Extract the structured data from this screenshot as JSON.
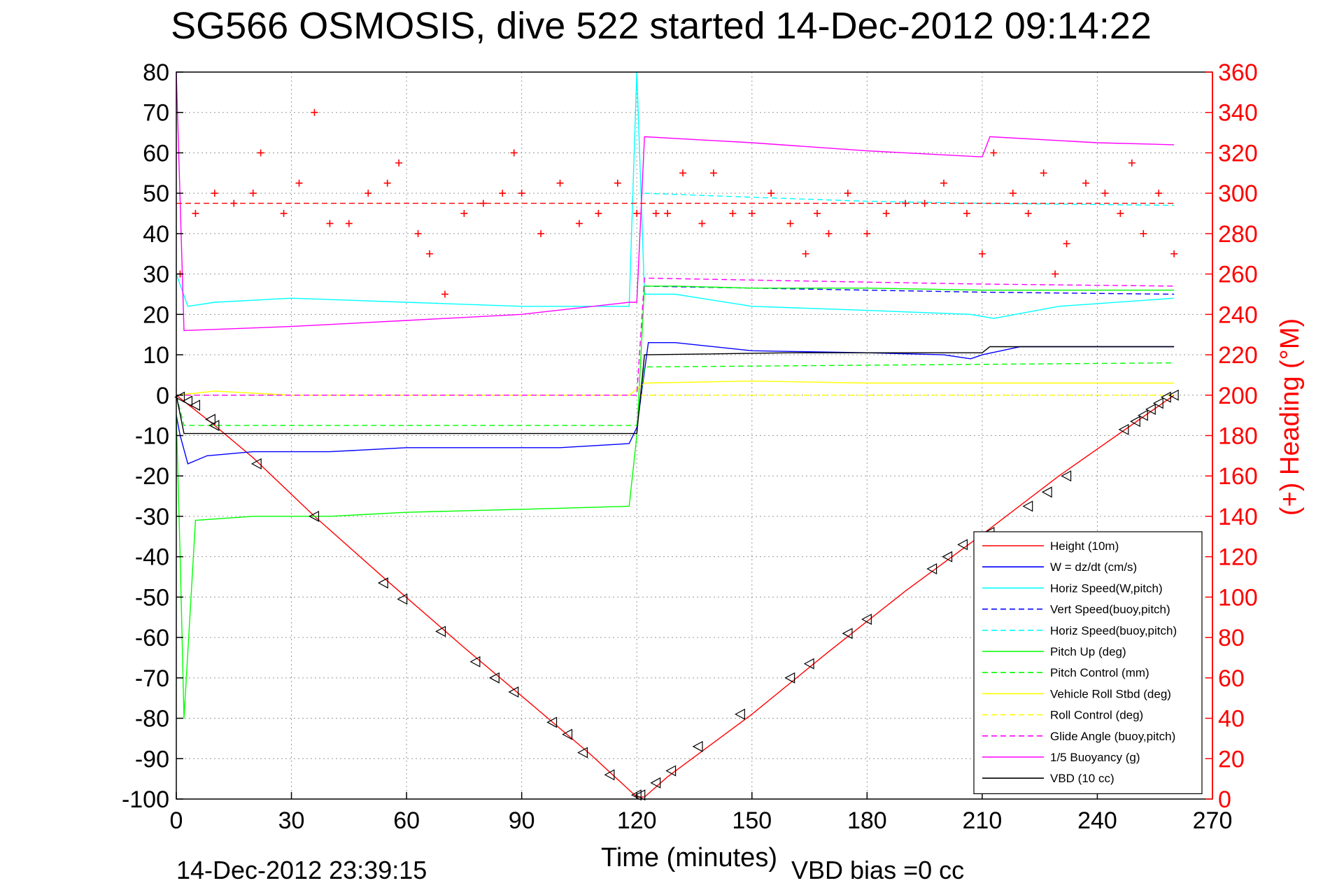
{
  "chart_data": {
    "type": "line",
    "title": "SG566 OSMOSIS, dive 522 started 14-Dec-2012 09:14:22",
    "xlabel": "Time (minutes)",
    "ylabel_right": "(+) Heading (°M)",
    "footer_left": "14-Dec-2012 23:39:15",
    "footer_right": "VBD bias =0 cc",
    "xlim": [
      0,
      270
    ],
    "ylim": [
      -100,
      80
    ],
    "ylim_right": [
      0,
      360
    ],
    "x_ticks": [
      "0",
      "30",
      "60",
      "90",
      "120",
      "150",
      "180",
      "210",
      "240",
      "270"
    ],
    "y_ticks": [
      "80",
      "70",
      "60",
      "50",
      "40",
      "30",
      "20",
      "10",
      "0",
      "-10",
      "-20",
      "-30",
      "-40",
      "-50",
      "-60",
      "-70",
      "-80",
      "-90",
      "-100"
    ],
    "y_ticks_right": [
      "360",
      "340",
      "320",
      "300",
      "280",
      "260",
      "240",
      "220",
      "200",
      "180",
      "160",
      "140",
      "120",
      "100",
      "80",
      "60",
      "40",
      "20",
      "0"
    ],
    "grid": true,
    "legend_position": "lower-right",
    "series": [
      {
        "name": "Height (10m)",
        "color": "#ff0000",
        "style": "solid",
        "x": [
          0,
          10,
          20,
          36,
          55,
          75,
          90,
          108,
          120,
          122,
          128,
          150,
          170,
          190,
          210,
          230,
          248,
          260
        ],
        "y": [
          0,
          -7.5,
          -15.5,
          -30,
          -46,
          -62.5,
          -74.5,
          -89,
          -99.5,
          -99.5,
          -94.5,
          -79,
          -63.5,
          -48.5,
          -34.5,
          -20,
          -8,
          0
        ]
      },
      {
        "name": "W = dz/dt (cm/s)",
        "color": "#0000ff",
        "style": "solid",
        "x": [
          0,
          1,
          3,
          8,
          20,
          40,
          60,
          80,
          100,
          118,
          120,
          123,
          130,
          150,
          180,
          200,
          207,
          210,
          220,
          240,
          260
        ],
        "y": [
          -5,
          -10,
          -17,
          -15,
          -14,
          -14,
          -13,
          -13,
          -13,
          -12,
          -8,
          13,
          13,
          11,
          10.5,
          10,
          9,
          10,
          12,
          12,
          12
        ]
      },
      {
        "name": "Horiz Speed(W,pitch)",
        "color": "#00ffff",
        "style": "solid",
        "x": [
          0,
          3,
          10,
          30,
          60,
          90,
          118,
          120,
          122,
          130,
          150,
          180,
          207,
          213,
          230,
          260
        ],
        "y": [
          30,
          22,
          23,
          24,
          23,
          22,
          22,
          80,
          25,
          25,
          22,
          21,
          20,
          19,
          22,
          24
        ]
      },
      {
        "name": "Vert Speed(buoy,pitch)",
        "color": "#0000ff",
        "style": "dashed",
        "x": [
          122,
          150,
          180,
          210,
          260
        ],
        "y": [
          27,
          26.5,
          26,
          25.5,
          25
        ]
      },
      {
        "name": "Horiz Speed(buoy,pitch)",
        "color": "#00ffff",
        "style": "dashed",
        "x": [
          122,
          150,
          180,
          210,
          260
        ],
        "y": [
          50,
          49,
          48,
          47.5,
          47
        ]
      },
      {
        "name": "Pitch Up (deg)",
        "color": "#00ff00",
        "style": "solid",
        "x": [
          0,
          1,
          2,
          5,
          20,
          40,
          60,
          80,
          100,
          118,
          120,
          122,
          130,
          150,
          180,
          210,
          240,
          260
        ],
        "y": [
          -5,
          -40,
          -80,
          -31,
          -30,
          -30,
          -29,
          -28.5,
          -28,
          -27.5,
          -10,
          27,
          27,
          26.5,
          26.5,
          26,
          26,
          26
        ]
      },
      {
        "name": "Pitch Control (mm)",
        "color": "#00ff00",
        "style": "dashed",
        "x": [
          0,
          2,
          120,
          122,
          260
        ],
        "y": [
          0,
          -7.5,
          -7.5,
          7,
          8
        ]
      },
      {
        "name": "Vehicle Roll Stbd (deg)",
        "color": "#ffff00",
        "style": "solid",
        "x": [
          0,
          10,
          30,
          60,
          90,
          118,
          122,
          150,
          180,
          210,
          240,
          260
        ],
        "y": [
          0,
          1,
          0,
          0,
          0,
          0,
          3,
          3.5,
          3,
          3,
          3,
          3
        ]
      },
      {
        "name": "Roll Control (deg)",
        "color": "#ffff00",
        "style": "dashed",
        "x": [
          0,
          120,
          122,
          260
        ],
        "y": [
          0,
          0,
          0,
          0
        ]
      },
      {
        "name": "Glide Angle (buoy,pitch)",
        "color": "#ff00ff",
        "style": "dashed",
        "x": [
          0,
          120,
          122,
          150,
          180,
          210,
          260
        ],
        "y": [
          0,
          0,
          29,
          28.5,
          28,
          27.5,
          27
        ]
      },
      {
        "name": "1/5 Buoyancy (g)",
        "color": "#ff00ff",
        "style": "solid",
        "x": [
          0,
          2,
          30,
          60,
          90,
          118,
          120,
          122,
          150,
          180,
          210,
          212,
          240,
          260
        ],
        "y": [
          80,
          16,
          17,
          18.5,
          20,
          23,
          23,
          64,
          62.5,
          60.5,
          59,
          64,
          62.5,
          62
        ]
      },
      {
        "name": "VBD (10 cc)",
        "color": "#000000",
        "style": "solid",
        "x": [
          0,
          2,
          120,
          122,
          160,
          210,
          212,
          260
        ],
        "y": [
          0,
          -9.5,
          -9.5,
          10,
          10.5,
          10.5,
          12,
          12
        ]
      },
      {
        "name": "Heading",
        "axis": "right",
        "color": "#ff0000",
        "marker": "+",
        "x": [
          1,
          5,
          10,
          15,
          20,
          22,
          28,
          32,
          36,
          40,
          45,
          50,
          55,
          58,
          63,
          66,
          70,
          75,
          80,
          85,
          88,
          90,
          95,
          100,
          105,
          110,
          115,
          120,
          125,
          128,
          132,
          137,
          140,
          145,
          150,
          155,
          160,
          164,
          167,
          170,
          175,
          180,
          185,
          190,
          195,
          200,
          206,
          210,
          213,
          218,
          222,
          226,
          229,
          232,
          237,
          242,
          246,
          249,
          252,
          256,
          260
        ],
        "y": [
          260,
          290,
          300,
          295,
          300,
          320,
          290,
          305,
          340,
          285,
          285,
          300,
          305,
          315,
          280,
          270,
          250,
          290,
          295,
          300,
          320,
          300,
          280,
          305,
          285,
          290,
          305,
          290,
          290,
          290,
          310,
          285,
          310,
          290,
          290,
          300,
          285,
          270,
          290,
          280,
          300,
          280,
          290,
          295,
          295,
          305,
          290,
          270,
          320,
          300,
          290,
          310,
          260,
          275,
          305,
          300,
          290,
          315,
          280,
          300,
          270
        ]
      },
      {
        "name": "Heading target",
        "axis": "right",
        "color": "#ff0000",
        "style": "dashed",
        "x": [
          0,
          260
        ],
        "y": [
          295,
          295
        ]
      }
    ],
    "markers": {
      "note": "open triangle markers along the Height trace",
      "x": [
        1,
        3,
        5,
        9,
        10,
        21,
        36,
        54,
        59,
        69,
        78,
        83,
        88,
        98,
        102,
        106,
        113,
        120,
        121,
        125,
        129,
        136,
        147,
        160,
        165,
        175,
        180,
        197,
        201,
        205,
        212,
        222,
        227,
        232,
        247,
        250,
        252,
        254,
        256,
        258,
        260
      ],
      "y": [
        -0.5,
        -1.5,
        -2.5,
        -6,
        -7.5,
        -17,
        -30,
        -46.5,
        -50.5,
        -58.5,
        -66,
        -70,
        -73.5,
        -81,
        -84,
        -88.5,
        -94,
        -99,
        -99,
        -96,
        -93,
        -87,
        -79,
        -70,
        -66.5,
        -59,
        -55.5,
        -43,
        -40,
        -37,
        -34,
        -27.5,
        -24,
        -20,
        -8.5,
        -6.5,
        -5,
        -3.5,
        -2,
        -0.5,
        0
      ]
    }
  }
}
